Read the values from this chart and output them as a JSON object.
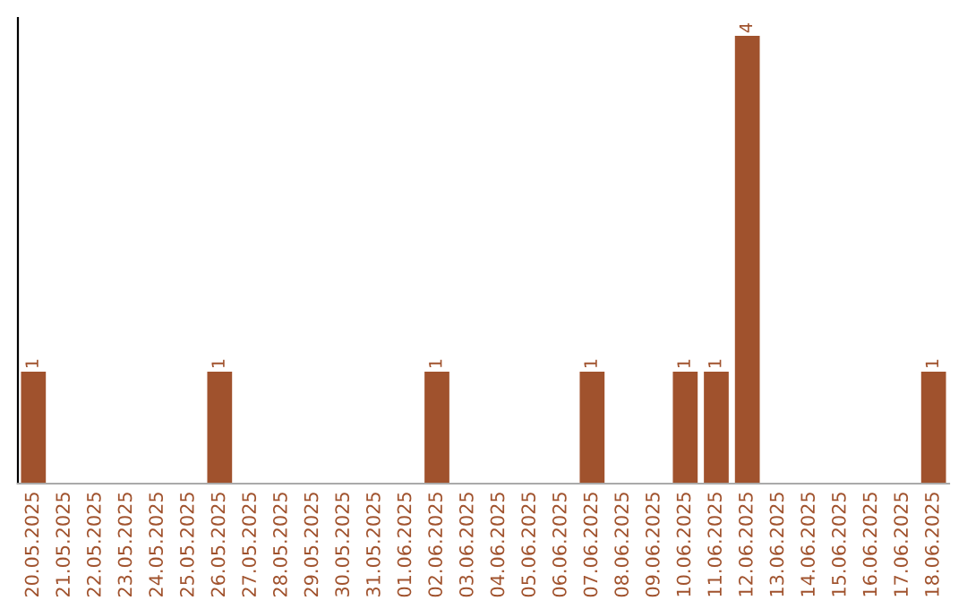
{
  "chart_data": {
    "type": "bar",
    "categories": [
      "20.05.2025",
      "21.05.2025",
      "22.05.2025",
      "23.05.2025",
      "24.05.2025",
      "25.05.2025",
      "26.05.2025",
      "27.05.2025",
      "28.05.2025",
      "29.05.2025",
      "30.05.2025",
      "31.05.2025",
      "01.06.2025",
      "02.06.2025",
      "03.06.2025",
      "04.06.2025",
      "05.06.2025",
      "06.06.2025",
      "07.06.2025",
      "08.06.2025",
      "09.06.2025",
      "10.06.2025",
      "11.06.2025",
      "12.06.2025",
      "13.06.2025",
      "14.06.2025",
      "15.06.2025",
      "16.06.2025",
      "17.06.2025",
      "18.06.2025"
    ],
    "values": [
      1,
      0,
      0,
      0,
      0,
      0,
      1,
      0,
      0,
      0,
      0,
      0,
      0,
      1,
      0,
      0,
      0,
      0,
      1,
      0,
      0,
      1,
      1,
      4,
      0,
      0,
      0,
      0,
      0,
      1
    ],
    "value_labels": [
      "1",
      null,
      null,
      null,
      null,
      null,
      "1",
      null,
      null,
      null,
      null,
      null,
      null,
      "1",
      null,
      null,
      null,
      null,
      "1",
      null,
      null,
      "1",
      "1",
      "4",
      null,
      null,
      null,
      null,
      null,
      "1"
    ],
    "color": "#a0522d",
    "tick_labels": "x",
    "grid": false,
    "legend": false
  }
}
